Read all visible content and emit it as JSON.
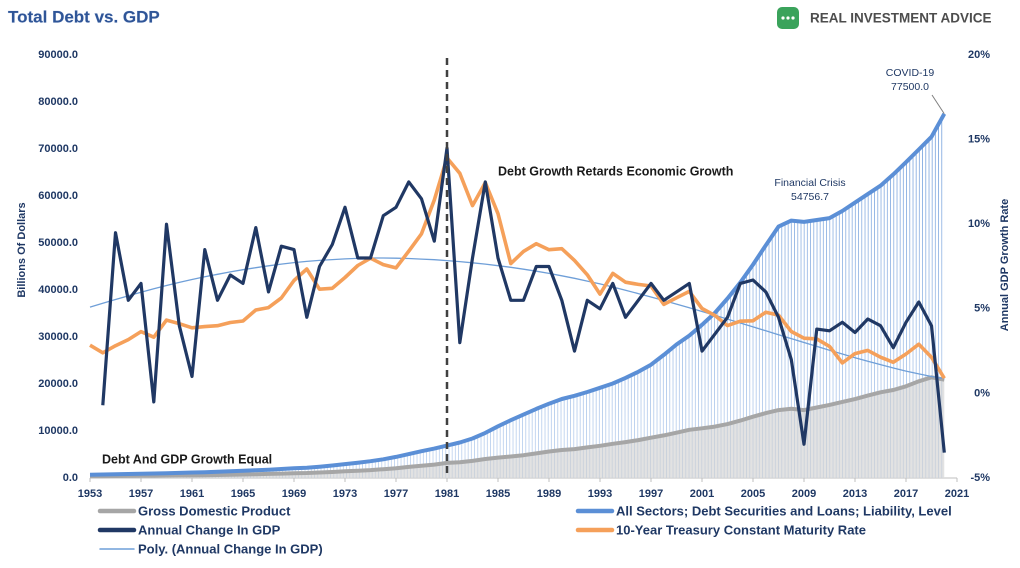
{
  "chart_data": {
    "type": "line",
    "title": "Total Debt vs. GDP",
    "brand": "REAL INVESTMENT ADVICE",
    "y_label": "Billions Of Dollars",
    "y2_label": "Annual GDP Growth Rate",
    "x": [
      1953,
      1954,
      1955,
      1956,
      1957,
      1958,
      1959,
      1960,
      1961,
      1962,
      1963,
      1964,
      1965,
      1966,
      1967,
      1968,
      1969,
      1970,
      1971,
      1972,
      1973,
      1974,
      1975,
      1976,
      1977,
      1978,
      1979,
      1980,
      1981,
      1982,
      1983,
      1984,
      1985,
      1986,
      1987,
      1988,
      1989,
      1990,
      1991,
      1992,
      1993,
      1994,
      1995,
      1996,
      1997,
      1998,
      1999,
      2000,
      2001,
      2002,
      2003,
      2004,
      2005,
      2006,
      2007,
      2008,
      2009,
      2010,
      2011,
      2012,
      2013,
      2014,
      2015,
      2016,
      2017,
      2018,
      2019,
      2020
    ],
    "xlim": [
      1953,
      2021
    ],
    "xticks": [
      1953,
      1957,
      1961,
      1965,
      1969,
      1973,
      1977,
      1981,
      1985,
      1989,
      1993,
      1997,
      2001,
      2005,
      2009,
      2013,
      2017,
      2021
    ],
    "ylim": [
      0,
      90000
    ],
    "yticks": [
      {
        "value": 0,
        "label": "0.0"
      },
      {
        "value": 10000,
        "label": "10000.0"
      },
      {
        "value": 20000,
        "label": "20000.0"
      },
      {
        "value": 30000,
        "label": "30000.0"
      },
      {
        "value": 40000,
        "label": "40000.0"
      },
      {
        "value": 50000,
        "label": "50000.0"
      },
      {
        "value": 60000,
        "label": "60000.0"
      },
      {
        "value": 70000,
        "label": "70000.0"
      },
      {
        "value": 80000,
        "label": "80000.0"
      },
      {
        "value": 90000,
        "label": "90000.0"
      }
    ],
    "y2lim": [
      -5,
      20
    ],
    "y2ticks": [
      {
        "value": -5,
        "label": "-5%"
      },
      {
        "value": 0,
        "label": "0%"
      },
      {
        "value": 5,
        "label": "5%"
      },
      {
        "value": 10,
        "label": "10%"
      },
      {
        "value": 15,
        "label": "15%"
      },
      {
        "value": 20,
        "label": "20%"
      }
    ],
    "vline_x": 1981,
    "series": [
      {
        "name": "Gross Domestic Product",
        "color": "#a6a6a6",
        "axis": "y",
        "values": [
          389,
          391,
          425,
          449,
          474,
          482,
          522,
          543,
          563,
          605,
          638,
          686,
          743,
          815,
          862,
          943,
          1019,
          1073,
          1165,
          1279,
          1425,
          1545,
          1684,
          1873,
          2082,
          2352,
          2627,
          2857,
          3207,
          3343,
          3634,
          4037,
          4339,
          4580,
          4855,
          5236,
          5642,
          5963,
          6158,
          6520,
          6859,
          7287,
          7640,
          8073,
          8577,
          9063,
          9631,
          10252,
          10582,
          10936,
          11458,
          12214,
          13037,
          13815,
          14452,
          14713,
          14449,
          14992,
          15543,
          16197,
          16785,
          17522,
          18225,
          18715,
          19519,
          20580,
          21433,
          20937
        ]
      },
      {
        "name": "All Sectors; Debt Securities and Loans; Liability, Level",
        "color": "#5b8fd6",
        "axis": "y",
        "values": [
          700,
          740,
          800,
          850,
          900,
          960,
          1030,
          1090,
          1160,
          1240,
          1330,
          1430,
          1540,
          1650,
          1770,
          1910,
          2060,
          2200,
          2400,
          2650,
          2950,
          3250,
          3570,
          3970,
          4480,
          5080,
          5700,
          6250,
          6900,
          7550,
          8400,
          9600,
          11000,
          12300,
          13500,
          14700,
          15800,
          16800,
          17500,
          18300,
          19200,
          20100,
          21300,
          22600,
          24100,
          26200,
          28400,
          30300,
          32600,
          35100,
          38200,
          41600,
          45400,
          49500,
          53500,
          54756.7,
          54500,
          54900,
          55300,
          56800,
          58600,
          60400,
          62200,
          64600,
          67200,
          69900,
          72600,
          77500
        ]
      },
      {
        "name": "Annual Change In GDP",
        "color": "#203864",
        "axis": "y2",
        "values": [
          null,
          -0.7,
          9.5,
          5.5,
          6.5,
          -0.5,
          10.0,
          4.0,
          1.0,
          8.5,
          5.5,
          7.0,
          6.5,
          9.8,
          6.0,
          8.7,
          8.5,
          4.5,
          7.5,
          8.8,
          11.0,
          8.0,
          8.0,
          10.5,
          11.0,
          12.5,
          11.5,
          9.0,
          14.5,
          3.0,
          8.0,
          12.5,
          8.0,
          5.5,
          5.5,
          7.5,
          7.5,
          5.5,
          2.5,
          5.5,
          5.0,
          6.5,
          4.5,
          5.5,
          6.5,
          5.5,
          6.0,
          6.5,
          2.5,
          3.5,
          4.5,
          6.5,
          6.7,
          6.0,
          4.5,
          2.0,
          -3.0,
          3.8,
          3.7,
          4.2,
          3.6,
          4.4,
          4.0,
          2.7,
          4.2,
          5.4,
          4.0,
          -3.5
        ]
      },
      {
        "name": "10-Year Treasury Constant Maturity Rate",
        "color": "#f5a05a",
        "axis": "y2",
        "values": [
          2.85,
          2.4,
          2.82,
          3.18,
          3.65,
          3.32,
          4.33,
          4.12,
          3.88,
          3.95,
          4.0,
          4.19,
          4.28,
          4.93,
          5.07,
          5.64,
          6.67,
          7.35,
          6.16,
          6.21,
          6.85,
          7.56,
          7.99,
          7.61,
          7.42,
          8.41,
          9.43,
          11.43,
          13.92,
          13.01,
          11.1,
          12.46,
          10.62,
          7.67,
          8.39,
          8.85,
          8.49,
          8.55,
          7.86,
          7.01,
          5.87,
          7.09,
          6.57,
          6.44,
          6.35,
          5.26,
          5.65,
          6.03,
          5.02,
          4.61,
          4.01,
          4.27,
          4.29,
          4.8,
          4.63,
          3.66,
          3.26,
          3.22,
          2.78,
          1.8,
          2.35,
          2.54,
          2.14,
          1.84,
          2.33,
          2.91,
          2.14,
          0.89
        ]
      },
      {
        "name": "Poly. (Annual Change In GDP)",
        "color": "#6f9fd8",
        "axis": "y2",
        "values": [
          5.1,
          5.33,
          5.55,
          5.77,
          5.98,
          6.18,
          6.38,
          6.56,
          6.73,
          6.89,
          7.04,
          7.18,
          7.31,
          7.43,
          7.54,
          7.64,
          7.73,
          7.8,
          7.86,
          7.91,
          7.95,
          7.98,
          8.0,
          8.0,
          7.99,
          7.97,
          7.94,
          7.9,
          7.85,
          7.79,
          7.72,
          7.64,
          7.55,
          7.45,
          7.34,
          7.22,
          7.09,
          6.95,
          6.8,
          6.64,
          6.47,
          6.29,
          6.1,
          5.9,
          5.7,
          5.49,
          5.28,
          5.06,
          4.84,
          4.62,
          4.39,
          4.16,
          3.93,
          3.7,
          3.47,
          3.24,
          3.01,
          2.78,
          2.55,
          2.33,
          2.11,
          1.9,
          1.7,
          1.5,
          1.32,
          1.15,
          1.0,
          0.87
        ]
      }
    ],
    "annotations": [
      {
        "text": "Debt And GDP Growth Equal"
      },
      {
        "text": "Debt Growth Retards Economic Growth"
      }
    ],
    "callouts": [
      {
        "text": "Financial Crisis",
        "x": 2008,
        "value": 54756.7,
        "label": "54756.7"
      },
      {
        "text": "COVID-19",
        "x": 2020,
        "value": 77500,
        "label": "77500.0"
      }
    ]
  }
}
